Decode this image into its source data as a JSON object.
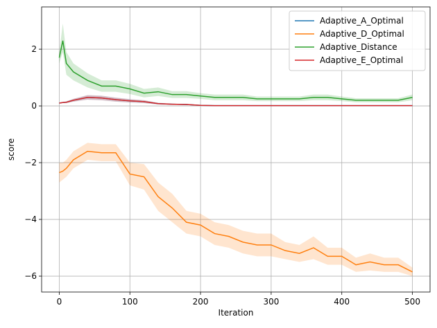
{
  "chart_data": {
    "type": "line",
    "x_label": "Iteration",
    "y_label": "score",
    "x": [
      0,
      5,
      10,
      20,
      40,
      60,
      80,
      100,
      120,
      140,
      160,
      180,
      200,
      220,
      240,
      260,
      280,
      300,
      320,
      340,
      360,
      380,
      400,
      420,
      440,
      460,
      480,
      500
    ],
    "xlim": [
      -25,
      525
    ],
    "ylim": [
      -6.56,
      3.49
    ],
    "xticks": [
      0,
      100,
      200,
      300,
      400,
      500
    ],
    "yticks": [
      {
        "value": -6,
        "label": "−6"
      },
      {
        "value": -4,
        "label": "−4"
      },
      {
        "value": -2,
        "label": "−2"
      },
      0,
      2
    ],
    "grid": true,
    "legend": "upper right",
    "series": [
      {
        "name": "Adaptive_A_Optimal",
        "color": "#1f77b4",
        "values": [
          0.1,
          0.12,
          0.13,
          0.2,
          0.3,
          0.28,
          0.22,
          0.18,
          0.15,
          0.08,
          0.06,
          0.05,
          0.02,
          0.01,
          0.01,
          0.01,
          0.01,
          0.01,
          0.01,
          0.01,
          0.01,
          0.01,
          0.01,
          0.01,
          0.01,
          0.01,
          0.01,
          0.01
        ],
        "lower": [
          0.08,
          0.1,
          0.1,
          0.15,
          0.22,
          0.2,
          0.15,
          0.12,
          0.1,
          0.05,
          0.04,
          0.03,
          0.01,
          0,
          0,
          0,
          0,
          0,
          0,
          0,
          0,
          0,
          0,
          0,
          0,
          0,
          0,
          0
        ],
        "upper": [
          0.12,
          0.14,
          0.16,
          0.25,
          0.38,
          0.36,
          0.29,
          0.24,
          0.2,
          0.11,
          0.08,
          0.07,
          0.03,
          0.02,
          0.02,
          0.02,
          0.02,
          0.02,
          0.02,
          0.02,
          0.02,
          0.02,
          0.02,
          0.02,
          0.02,
          0.02,
          0.02,
          0.02
        ]
      },
      {
        "name": "Adaptive_D_Optimal",
        "color": "#ff7f0e",
        "values": [
          -2.35,
          -2.3,
          -2.2,
          -1.9,
          -1.6,
          -1.65,
          -1.65,
          -2.4,
          -2.5,
          -3.2,
          -3.6,
          -4.1,
          -4.2,
          -4.5,
          -4.6,
          -4.8,
          -4.9,
          -4.9,
          -5.1,
          -5.2,
          -5.0,
          -5.3,
          -5.3,
          -5.6,
          -5.5,
          -5.6,
          -5.6,
          -5.85
        ],
        "lower": [
          -2.7,
          -2.6,
          -2.5,
          -2.2,
          -1.9,
          -1.95,
          -1.95,
          -2.8,
          -2.95,
          -3.7,
          -4.1,
          -4.5,
          -4.6,
          -4.9,
          -5.0,
          -5.2,
          -5.3,
          -5.3,
          -5.4,
          -5.5,
          -5.4,
          -5.6,
          -5.6,
          -5.85,
          -5.8,
          -5.85,
          -5.85,
          -6.0
        ],
        "upper": [
          -2.0,
          -2.0,
          -1.9,
          -1.6,
          -1.3,
          -1.35,
          -1.35,
          -2.0,
          -2.05,
          -2.7,
          -3.1,
          -3.7,
          -3.8,
          -4.1,
          -4.2,
          -4.4,
          -4.5,
          -4.5,
          -4.8,
          -4.9,
          -4.6,
          -5.0,
          -5.0,
          -5.35,
          -5.2,
          -5.35,
          -5.35,
          -5.7
        ]
      },
      {
        "name": "Adaptive_Distance",
        "color": "#2ca02c",
        "values": [
          1.7,
          2.3,
          1.5,
          1.2,
          0.9,
          0.7,
          0.7,
          0.6,
          0.45,
          0.5,
          0.4,
          0.4,
          0.35,
          0.3,
          0.3,
          0.3,
          0.25,
          0.25,
          0.25,
          0.25,
          0.3,
          0.3,
          0.25,
          0.2,
          0.2,
          0.2,
          0.2,
          0.3
        ],
        "lower": [
          1.5,
          1.9,
          1.1,
          0.9,
          0.65,
          0.5,
          0.5,
          0.42,
          0.3,
          0.35,
          0.28,
          0.28,
          0.25,
          0.2,
          0.2,
          0.2,
          0.17,
          0.17,
          0.17,
          0.17,
          0.2,
          0.2,
          0.17,
          0.13,
          0.13,
          0.13,
          0.13,
          0.2
        ],
        "upper": [
          1.9,
          2.9,
          1.9,
          1.5,
          1.15,
          0.9,
          0.9,
          0.78,
          0.6,
          0.65,
          0.52,
          0.52,
          0.45,
          0.4,
          0.4,
          0.4,
          0.33,
          0.33,
          0.33,
          0.33,
          0.4,
          0.4,
          0.33,
          0.27,
          0.27,
          0.27,
          0.27,
          0.4
        ]
      },
      {
        "name": "Adaptive_E_Optimal",
        "color": "#d62728",
        "values": [
          0.1,
          0.12,
          0.13,
          0.2,
          0.3,
          0.28,
          0.22,
          0.18,
          0.15,
          0.08,
          0.06,
          0.05,
          0.02,
          0.01,
          0.01,
          0.01,
          0.01,
          0.01,
          0.01,
          0.01,
          0.01,
          0.01,
          0.01,
          0.01,
          0.01,
          0.01,
          0.01,
          0.01
        ],
        "lower": [
          0.08,
          0.1,
          0.1,
          0.15,
          0.22,
          0.2,
          0.15,
          0.12,
          0.1,
          0.05,
          0.04,
          0.03,
          0.01,
          0,
          0,
          0,
          0,
          0,
          0,
          0,
          0,
          0,
          0,
          0,
          0,
          0,
          0,
          0
        ],
        "upper": [
          0.12,
          0.14,
          0.16,
          0.25,
          0.38,
          0.36,
          0.29,
          0.24,
          0.2,
          0.11,
          0.08,
          0.07,
          0.03,
          0.02,
          0.02,
          0.02,
          0.02,
          0.02,
          0.02,
          0.02,
          0.02,
          0.02,
          0.02,
          0.02,
          0.02,
          0.02,
          0.02,
          0.02
        ]
      }
    ]
  }
}
